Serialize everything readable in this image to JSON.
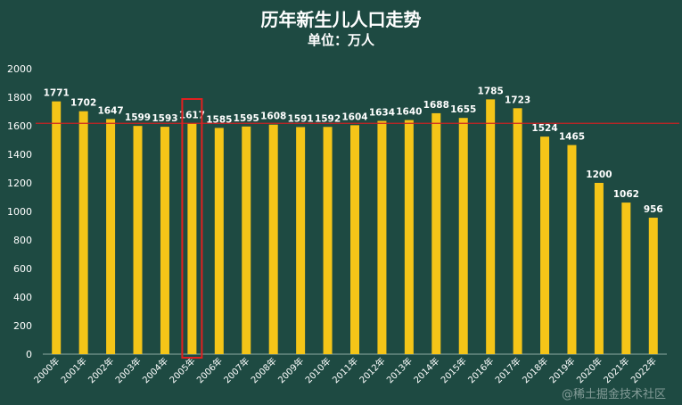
{
  "chart_data": {
    "type": "bar",
    "title": "历年新生儿人口走势",
    "subtitle": "单位：万人",
    "categories": [
      "2000年",
      "2001年",
      "2002年",
      "2003年",
      "2004年",
      "2005年",
      "2006年",
      "2007年",
      "2008年",
      "2009年",
      "2010年",
      "2011年",
      "2012年",
      "2013年",
      "2014年",
      "2015年",
      "2016年",
      "2017年",
      "2018年",
      "2019年",
      "2020年",
      "2021年",
      "2022年"
    ],
    "values": [
      1771,
      1702,
      1647,
      1599,
      1593,
      1617,
      1585,
      1595,
      1608,
      1591,
      1592,
      1604,
      1634,
      1640,
      1688,
      1655,
      1785,
      1723,
      1524,
      1465,
      1200,
      1062,
      956
    ],
    "y_ticks": [
      "0",
      "200",
      "400",
      "600",
      "800",
      "1000",
      "1200",
      "1400",
      "1600",
      "1800",
      "2000"
    ],
    "ylim": [
      0,
      2000
    ],
    "reference_line": 1617,
    "highlight_category": "2005年",
    "grid": false,
    "legend": "none",
    "colors": {
      "background": "#1e4a42",
      "bar": "#f5c518",
      "reference_line": "#cc2222",
      "highlight_box": "#e02020",
      "text": "#ffffff"
    }
  },
  "watermark": "@稀土掘金技术社区"
}
